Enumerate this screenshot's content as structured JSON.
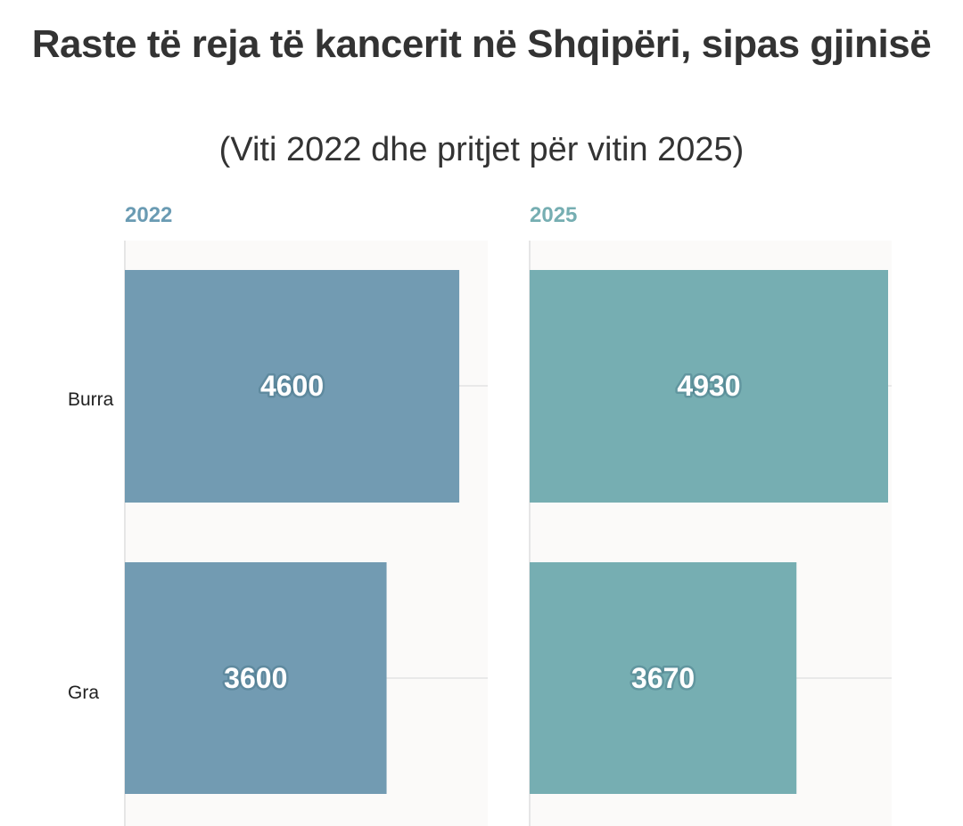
{
  "chart_data": {
    "type": "bar",
    "title": "Raste të reja të kancerit në Shqipëri, sipas gjinisë",
    "subtitle": "(Viti 2022 dhe pritjet për vitin 2025)",
    "categories": [
      "Burra",
      "Gra"
    ],
    "orientation": "horizontal",
    "panels": [
      {
        "name": "2022",
        "values": [
          4600,
          3600
        ],
        "color": "#729bb2"
      },
      {
        "name": "2025",
        "values": [
          4930,
          3670
        ],
        "color": "#76aeb2"
      }
    ],
    "xlim": [
      0,
      4930
    ],
    "grid": true
  }
}
